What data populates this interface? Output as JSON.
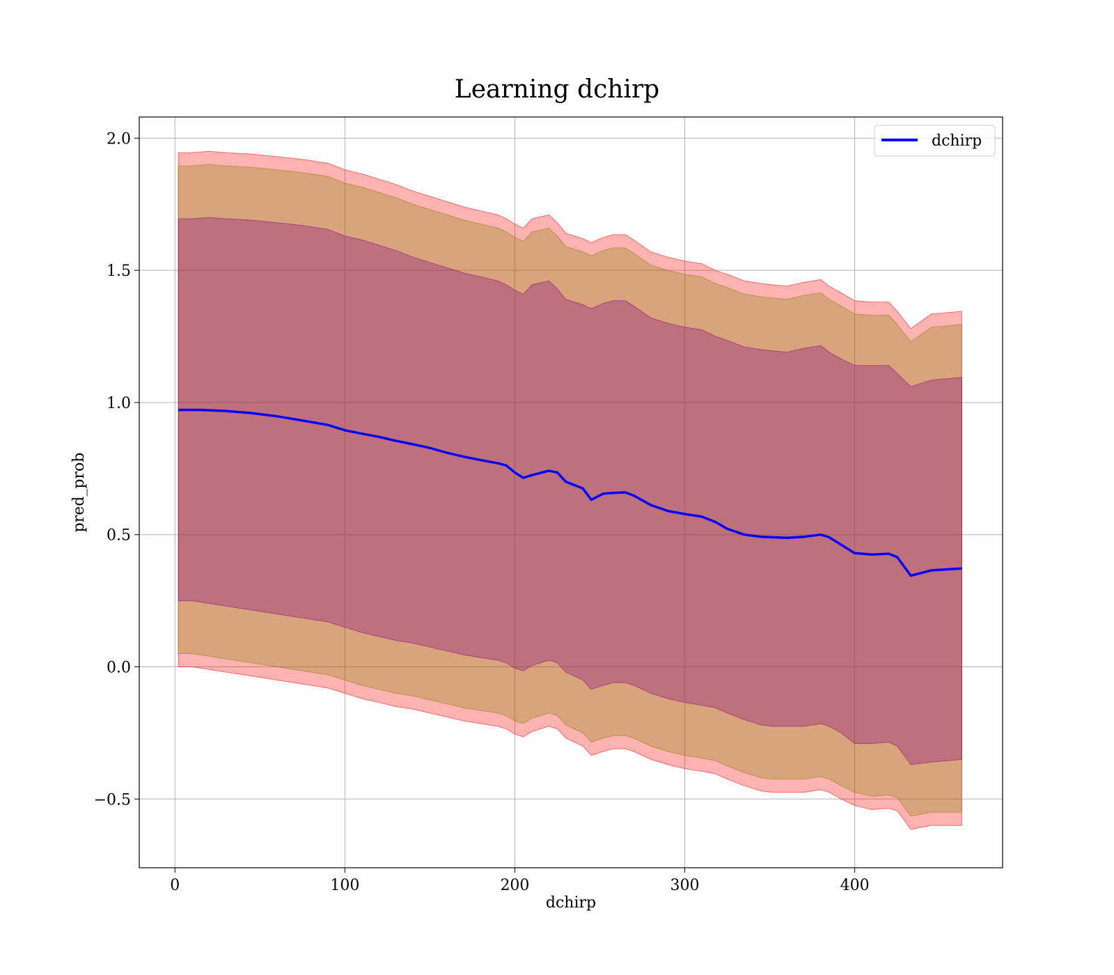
{
  "chart_data": {
    "type": "line",
    "title": "Learning dchirp",
    "xlabel": "dchirp",
    "ylabel": "pred_prob",
    "xlim": [
      -21,
      487
    ],
    "ylim": [
      -0.76,
      2.08
    ],
    "xticks": [
      0,
      100,
      200,
      300,
      400
    ],
    "yticks": [
      -0.5,
      0.0,
      0.5,
      1.0,
      1.5,
      2.0
    ],
    "xtick_labels": [
      "0",
      "100",
      "200",
      "300",
      "400"
    ],
    "ytick_labels": [
      "−0.5",
      "0.0",
      "0.5",
      "1.0",
      "1.5",
      "2.0"
    ],
    "grid": true,
    "legend": {
      "placement": "upper right",
      "entries": [
        "dchirp"
      ]
    },
    "series": [
      {
        "name": "dchirp",
        "color": "#0000ff",
        "x": [
          2,
          15,
          30,
          45,
          60,
          75,
          90,
          100,
          110,
          120,
          130,
          140,
          150,
          160,
          170,
          180,
          190,
          195,
          200,
          205,
          210,
          220,
          225,
          230,
          240,
          245,
          252,
          258,
          265,
          270,
          280,
          290,
          300,
          310,
          318,
          325,
          335,
          345,
          352,
          360,
          370,
          380,
          385,
          392,
          400,
          410,
          420,
          425,
          433,
          445,
          463
        ],
        "y": [
          0.972,
          0.972,
          0.968,
          0.96,
          0.948,
          0.932,
          0.915,
          0.895,
          0.882,
          0.87,
          0.855,
          0.842,
          0.828,
          0.81,
          0.795,
          0.782,
          0.77,
          0.762,
          0.735,
          0.715,
          0.725,
          0.742,
          0.735,
          0.7,
          0.675,
          0.632,
          0.655,
          0.658,
          0.66,
          0.648,
          0.612,
          0.59,
          0.578,
          0.568,
          0.548,
          0.522,
          0.5,
          0.492,
          0.49,
          0.488,
          0.492,
          0.5,
          0.49,
          0.462,
          0.43,
          0.425,
          0.428,
          0.415,
          0.345,
          0.365,
          0.372
        ]
      }
    ],
    "bands": [
      {
        "fill": "#ff0000",
        "opacity": 0.3,
        "x": [
          2,
          10,
          20,
          30,
          45,
          60,
          75,
          90,
          100,
          110,
          120,
          130,
          140,
          150,
          160,
          170,
          180,
          190,
          195,
          200,
          205,
          210,
          220,
          225,
          230,
          240,
          245,
          252,
          258,
          265,
          270,
          280,
          290,
          300,
          310,
          318,
          325,
          335,
          345,
          352,
          360,
          370,
          380,
          385,
          392,
          400,
          410,
          420,
          425,
          433,
          445,
          463
        ],
        "upper": [
          1.945,
          1.945,
          1.95,
          1.945,
          1.94,
          1.93,
          1.92,
          1.905,
          1.88,
          1.865,
          1.845,
          1.825,
          1.8,
          1.78,
          1.76,
          1.74,
          1.725,
          1.71,
          1.695,
          1.675,
          1.66,
          1.695,
          1.71,
          1.68,
          1.64,
          1.62,
          1.605,
          1.625,
          1.635,
          1.635,
          1.615,
          1.57,
          1.55,
          1.535,
          1.525,
          1.5,
          1.485,
          1.46,
          1.45,
          1.445,
          1.44,
          1.455,
          1.465,
          1.44,
          1.415,
          1.385,
          1.38,
          1.38,
          1.345,
          1.28,
          1.335,
          1.345
        ],
        "lower": [
          0.0,
          0.0,
          -0.01,
          -0.02,
          -0.035,
          -0.05,
          -0.065,
          -0.08,
          -0.1,
          -0.12,
          -0.135,
          -0.15,
          -0.16,
          -0.175,
          -0.19,
          -0.205,
          -0.215,
          -0.225,
          -0.235,
          -0.255,
          -0.265,
          -0.245,
          -0.225,
          -0.235,
          -0.27,
          -0.3,
          -0.335,
          -0.32,
          -0.31,
          -0.31,
          -0.32,
          -0.35,
          -0.37,
          -0.385,
          -0.395,
          -0.405,
          -0.425,
          -0.45,
          -0.47,
          -0.475,
          -0.475,
          -0.475,
          -0.465,
          -0.475,
          -0.5,
          -0.525,
          -0.54,
          -0.535,
          -0.545,
          -0.615,
          -0.6,
          -0.6
        ]
      },
      {
        "fill": "#808000",
        "opacity": 0.3,
        "x": [
          2,
          10,
          20,
          30,
          45,
          60,
          75,
          90,
          100,
          110,
          120,
          130,
          140,
          150,
          160,
          170,
          180,
          190,
          195,
          200,
          205,
          210,
          220,
          225,
          230,
          240,
          245,
          252,
          258,
          265,
          270,
          280,
          290,
          300,
          310,
          318,
          325,
          335,
          345,
          352,
          360,
          370,
          380,
          385,
          392,
          400,
          410,
          420,
          425,
          433,
          445,
          463
        ],
        "upper": [
          1.895,
          1.895,
          1.9,
          1.895,
          1.89,
          1.88,
          1.87,
          1.855,
          1.83,
          1.815,
          1.795,
          1.775,
          1.75,
          1.73,
          1.71,
          1.69,
          1.675,
          1.66,
          1.645,
          1.625,
          1.61,
          1.645,
          1.66,
          1.63,
          1.59,
          1.57,
          1.555,
          1.575,
          1.585,
          1.585,
          1.565,
          1.52,
          1.5,
          1.485,
          1.475,
          1.45,
          1.435,
          1.41,
          1.4,
          1.395,
          1.39,
          1.405,
          1.415,
          1.39,
          1.365,
          1.335,
          1.33,
          1.33,
          1.295,
          1.23,
          1.285,
          1.295
        ],
        "lower": [
          0.05,
          0.05,
          0.04,
          0.03,
          0.015,
          0.0,
          -0.015,
          -0.03,
          -0.05,
          -0.07,
          -0.085,
          -0.1,
          -0.11,
          -0.125,
          -0.14,
          -0.155,
          -0.165,
          -0.175,
          -0.185,
          -0.205,
          -0.215,
          -0.195,
          -0.175,
          -0.185,
          -0.22,
          -0.25,
          -0.285,
          -0.27,
          -0.26,
          -0.26,
          -0.27,
          -0.3,
          -0.32,
          -0.335,
          -0.345,
          -0.355,
          -0.375,
          -0.4,
          -0.42,
          -0.425,
          -0.425,
          -0.425,
          -0.415,
          -0.425,
          -0.45,
          -0.475,
          -0.49,
          -0.485,
          -0.495,
          -0.565,
          -0.55,
          -0.55
        ]
      },
      {
        "fill": "#800080",
        "opacity": 0.3,
        "x": [
          2,
          10,
          20,
          30,
          45,
          60,
          75,
          90,
          100,
          110,
          120,
          130,
          140,
          150,
          160,
          170,
          180,
          190,
          195,
          200,
          205,
          210,
          220,
          225,
          230,
          240,
          245,
          252,
          258,
          265,
          270,
          280,
          290,
          300,
          310,
          318,
          325,
          335,
          345,
          352,
          360,
          370,
          380,
          385,
          392,
          400,
          410,
          420,
          425,
          433,
          445,
          463
        ],
        "upper": [
          1.695,
          1.695,
          1.7,
          1.695,
          1.69,
          1.68,
          1.67,
          1.655,
          1.63,
          1.615,
          1.595,
          1.575,
          1.55,
          1.53,
          1.51,
          1.49,
          1.475,
          1.46,
          1.445,
          1.425,
          1.41,
          1.445,
          1.46,
          1.43,
          1.39,
          1.37,
          1.355,
          1.375,
          1.385,
          1.385,
          1.365,
          1.32,
          1.3,
          1.285,
          1.275,
          1.25,
          1.235,
          1.21,
          1.2,
          1.195,
          1.19,
          1.205,
          1.215,
          1.19,
          1.165,
          1.14,
          1.14,
          1.14,
          1.11,
          1.06,
          1.085,
          1.095
        ],
        "lower": [
          0.25,
          0.25,
          0.24,
          0.23,
          0.215,
          0.2,
          0.185,
          0.17,
          0.15,
          0.13,
          0.115,
          0.1,
          0.09,
          0.075,
          0.06,
          0.045,
          0.035,
          0.025,
          0.015,
          -0.005,
          -0.015,
          0.005,
          0.025,
          0.015,
          -0.02,
          -0.05,
          -0.085,
          -0.07,
          -0.06,
          -0.06,
          -0.07,
          -0.1,
          -0.12,
          -0.135,
          -0.145,
          -0.155,
          -0.175,
          -0.2,
          -0.22,
          -0.225,
          -0.225,
          -0.225,
          -0.215,
          -0.225,
          -0.25,
          -0.29,
          -0.29,
          -0.285,
          -0.3,
          -0.37,
          -0.36,
          -0.35
        ]
      }
    ]
  }
}
